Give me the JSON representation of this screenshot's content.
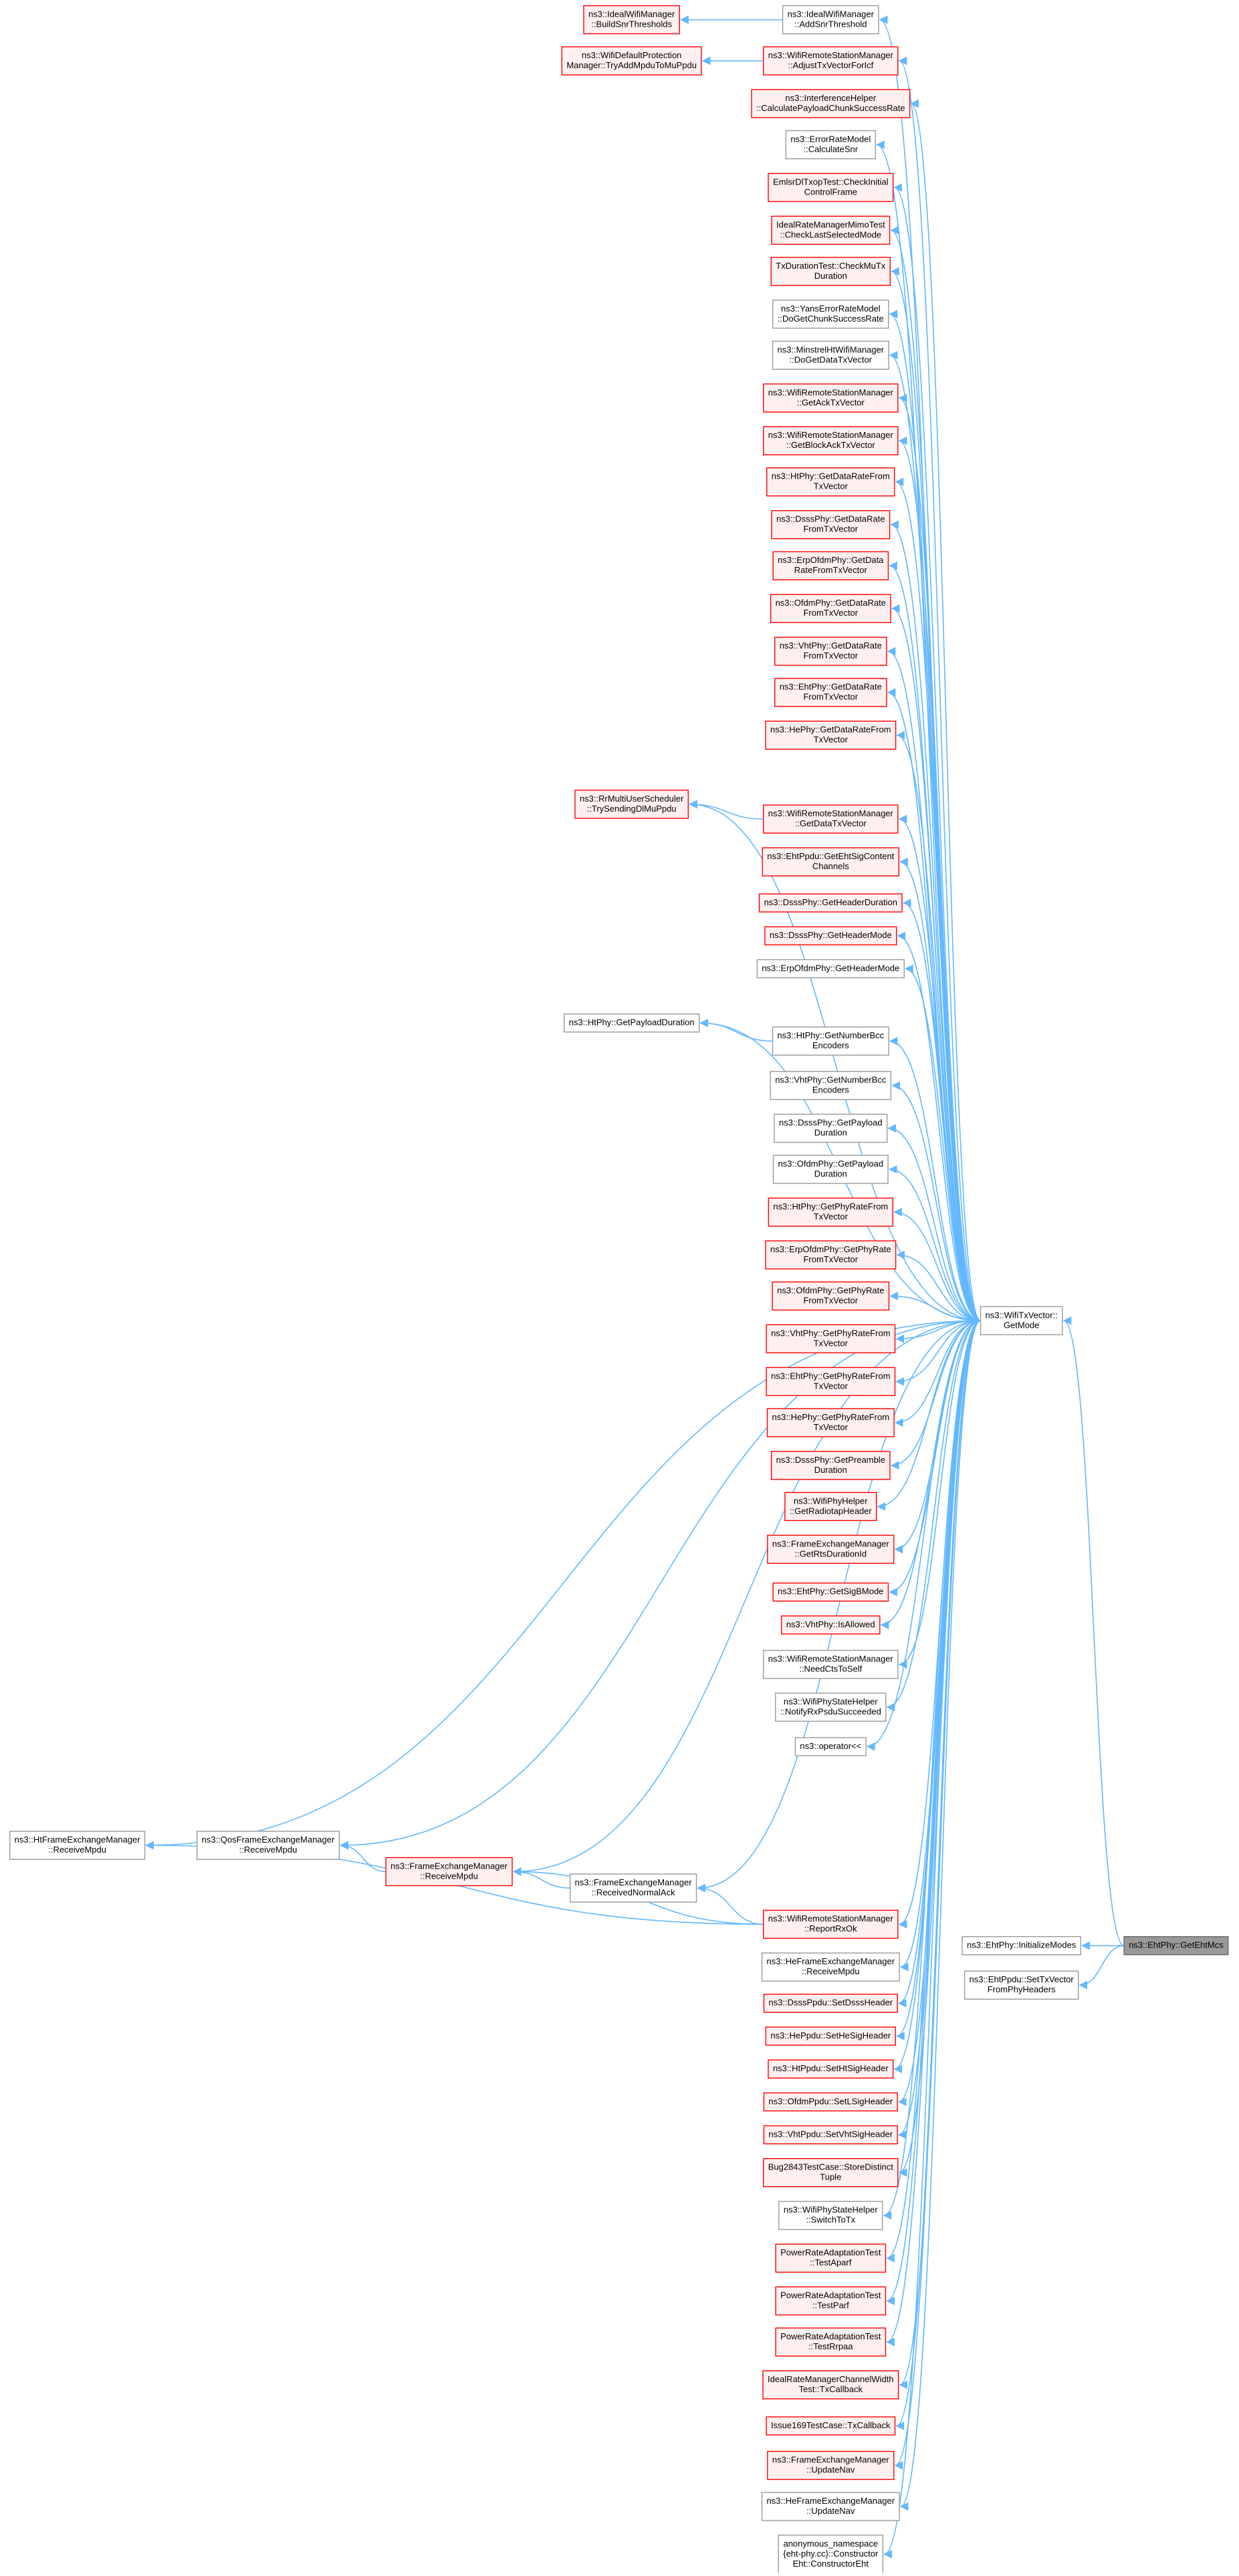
{
  "nodes": [
    {
      "lines": [
        "ns3::IdealWifiManager",
        "::BuildSnrThresholds"
      ]
    },
    {
      "lines": [
        "ns3::IdealWifiManager",
        "::AddSnrThreshold"
      ]
    },
    {
      "lines": [
        "ns3::WifiDefaultProtection",
        "Manager::TryAddMpduToMuPpdu"
      ]
    },
    {
      "lines": [
        "ns3::WifiRemoteStationManager",
        "::AdjustTxVectorForIcf"
      ]
    },
    {
      "lines": [
        "ns3::InterferenceHelper",
        "::CalculatePayloadChunkSuccessRate"
      ]
    },
    {
      "lines": [
        "ns3::ErrorRateModel",
        "::CalculateSnr"
      ]
    },
    {
      "lines": [
        "EmlsrDlTxopTest::CheckInitial",
        "ControlFrame"
      ]
    },
    {
      "lines": [
        "IdealRateManagerMimoTest",
        "::CheckLastSelectedMode"
      ]
    },
    {
      "lines": [
        "TxDurationTest::CheckMuTx",
        "Duration"
      ]
    },
    {
      "lines": [
        "ns3::YansErrorRateModel",
        "::DoGetChunkSuccessRate"
      ]
    },
    {
      "lines": [
        "ns3::MinstrelHtWifiManager",
        "::DoGetDataTxVector"
      ]
    },
    {
      "lines": [
        "ns3::WifiRemoteStationManager",
        "::GetAckTxVector"
      ]
    },
    {
      "lines": [
        "ns3::WifiRemoteStationManager",
        "::GetBlockAckTxVector"
      ]
    },
    {
      "lines": [
        "ns3::HtPhy::GetDataRateFrom",
        "TxVector"
      ]
    },
    {
      "lines": [
        "ns3::DsssPhy::GetDataRate",
        "FromTxVector"
      ]
    },
    {
      "lines": [
        "ns3::ErpOfdmPhy::GetData",
        "RateFromTxVector"
      ]
    },
    {
      "lines": [
        "ns3::OfdmPhy::GetDataRate",
        "FromTxVector"
      ]
    },
    {
      "lines": [
        "ns3::VhtPhy::GetDataRate",
        "FromTxVector"
      ]
    },
    {
      "lines": [
        "ns3::EhtPhy::GetDataRate",
        "FromTxVector"
      ]
    },
    {
      "lines": [
        "ns3::HePhy::GetDataRateFrom",
        "TxVector"
      ]
    },
    {
      "lines": [
        "ns3::RrMultiUserScheduler",
        "::TrySendingDlMuPpdu"
      ]
    },
    {
      "lines": [
        "ns3::WifiRemoteStationManager",
        "::GetDataTxVector"
      ]
    },
    {
      "lines": [
        "ns3::EhtPpdu::GetEhtSigContent",
        "Channels"
      ]
    },
    {
      "lines": [
        "ns3::DsssPhy::GetHeaderDuration"
      ]
    },
    {
      "lines": [
        "ns3::DsssPhy::GetHeaderMode"
      ]
    },
    {
      "lines": [
        "ns3::ErpOfdmPhy::GetHeaderMode"
      ]
    },
    {
      "lines": [
        "ns3::HtPhy::GetPayloadDuration"
      ]
    },
    {
      "lines": [
        "ns3::HtPhy::GetNumberBcc",
        "Encoders"
      ]
    },
    {
      "lines": [
        "ns3::VhtPhy::GetNumberBcc",
        "Encoders"
      ]
    },
    {
      "lines": [
        "ns3::DsssPhy::GetPayload",
        "Duration"
      ]
    },
    {
      "lines": [
        "ns3::OfdmPhy::GetPayload",
        "Duration"
      ]
    },
    {
      "lines": [
        "ns3::HtPhy::GetPhyRateFrom",
        "TxVector"
      ]
    },
    {
      "lines": [
        "ns3::ErpOfdmPhy::GetPhyRate",
        "FromTxVector"
      ]
    },
    {
      "lines": [
        "ns3::OfdmPhy::GetPhyRate",
        "FromTxVector"
      ]
    },
    {
      "lines": [
        "ns3::VhtPhy::GetPhyRateFrom",
        "TxVector"
      ]
    },
    {
      "lines": [
        "ns3::EhtPhy::GetPhyRateFrom",
        "TxVector"
      ]
    },
    {
      "lines": [
        "ns3::HePhy::GetPhyRateFrom",
        "TxVector"
      ]
    },
    {
      "lines": [
        "ns3::DsssPhy::GetPreamble",
        "Duration"
      ]
    },
    {
      "lines": [
        "ns3::WifiPhyHelper",
        "::GetRadiotapHeader"
      ]
    },
    {
      "lines": [
        "ns3::FrameExchangeManager",
        "::GetRtsDurationId"
      ]
    },
    {
      "lines": [
        "ns3::EhtPhy::GetSigBMode"
      ]
    },
    {
      "lines": [
        "ns3::VhtPhy::IsAllowed"
      ]
    },
    {
      "lines": [
        "ns3::WifiRemoteStationManager",
        "::NeedCtsToSelf"
      ]
    },
    {
      "lines": [
        "ns3::WifiPhyStateHelper",
        "::NotifyRxPsduSucceeded"
      ]
    },
    {
      "lines": [
        "ns3::operator<<"
      ]
    },
    {
      "lines": [
        "ns3::HtFrameExchangeManager",
        "::ReceiveMpdu"
      ]
    },
    {
      "lines": [
        "ns3::QosFrameExchangeManager",
        "::ReceiveMpdu"
      ]
    },
    {
      "lines": [
        "ns3::FrameExchangeManager",
        "::ReceiveMpdu"
      ]
    },
    {
      "lines": [
        "ns3::FrameExchangeManager",
        "::ReceivedNormalAck"
      ]
    },
    {
      "lines": [
        "ns3::WifiRemoteStationManager",
        "::ReportRxOk"
      ]
    },
    {
      "lines": [
        "ns3::HeFrameExchangeManager",
        "::ReceiveMpdu"
      ]
    },
    {
      "lines": [
        "ns3::DsssPpdu::SetDsssHeader"
      ]
    },
    {
      "lines": [
        "ns3::HePpdu::SetHeSigHeader"
      ]
    },
    {
      "lines": [
        "ns3::HtPpdu::SetHtSigHeader"
      ]
    },
    {
      "lines": [
        "ns3::OfdmPpdu::SetLSigHeader"
      ]
    },
    {
      "lines": [
        "ns3::VhtPpdu::SetVhtSigHeader"
      ]
    },
    {
      "lines": [
        "Bug2843TestCase::StoreDistinct",
        "Tuple"
      ]
    },
    {
      "lines": [
        "ns3::WifiPhyStateHelper",
        "::SwitchToTx"
      ]
    },
    {
      "lines": [
        "PowerRateAdaptationTest",
        "::TestAparf"
      ]
    },
    {
      "lines": [
        "PowerRateAdaptationTest",
        "::TestParf"
      ]
    },
    {
      "lines": [
        "PowerRateAdaptationTest",
        "::TestRrpaa"
      ]
    },
    {
      "lines": [
        "IdealRateManagerChannelWidth",
        "Test::TxCallback"
      ]
    },
    {
      "lines": [
        "Issue169TestCase::TxCallback"
      ]
    },
    {
      "lines": [
        "ns3::FrameExchangeManager",
        "::UpdateNav"
      ]
    },
    {
      "lines": [
        "ns3::HeFrameExchangeManager",
        "::UpdateNav"
      ]
    },
    {
      "lines": [
        "anonymous_namespace",
        "{eht-phy.cc}::Constructor",
        "Eht::ConstructorEht"
      ]
    },
    {
      "lines": [
        "ns3::WifiTxVector::",
        "GetMode"
      ]
    },
    {
      "lines": [
        "ns3::EhtPhy::InitializeModes"
      ]
    },
    {
      "lines": [
        "ns3::EhtPpdu::SetTxVector",
        "FromPhyHeaders"
      ]
    },
    {
      "lines": [
        "ns3::EhtPhy::GetEhtMcs"
      ]
    }
  ]
}
